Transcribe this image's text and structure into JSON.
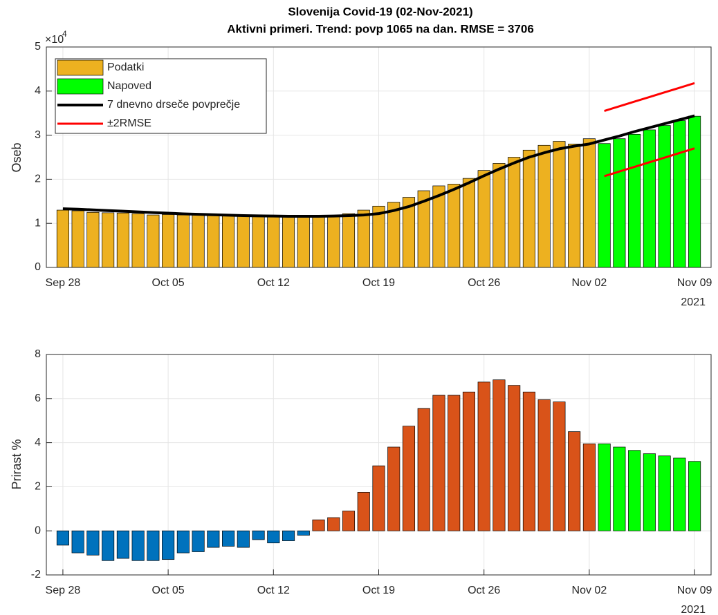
{
  "chart_data": [
    {
      "type": "bar",
      "title": [
        "Slovenija Covid-19 (02-Nov-2021)",
        "Aktivni primeri. Trend: povp 1065 na dan. RMSE = 3706"
      ],
      "ylabel": "Oseb",
      "y_exponent_label": "×10",
      "y_exponent": 4,
      "x": [
        "2021-09-28",
        "2021-09-29",
        "2021-09-30",
        "2021-10-01",
        "2021-10-02",
        "2021-10-03",
        "2021-10-04",
        "2021-10-05",
        "2021-10-06",
        "2021-10-07",
        "2021-10-08",
        "2021-10-09",
        "2021-10-10",
        "2021-10-11",
        "2021-10-12",
        "2021-10-13",
        "2021-10-14",
        "2021-10-15",
        "2021-10-16",
        "2021-10-17",
        "2021-10-18",
        "2021-10-19",
        "2021-10-20",
        "2021-10-21",
        "2021-10-22",
        "2021-10-23",
        "2021-10-24",
        "2021-10-25",
        "2021-10-26",
        "2021-10-27",
        "2021-10-28",
        "2021-10-29",
        "2021-10-30",
        "2021-10-31",
        "2021-11-01",
        "2021-11-02",
        "2021-11-03",
        "2021-11-04",
        "2021-11-05",
        "2021-11-06",
        "2021-11-07",
        "2021-11-08",
        "2021-11-09"
      ],
      "xticks": [
        {
          "value": "2021-09-28",
          "label": "Sep 28"
        },
        {
          "value": "2021-10-05",
          "label": "Oct 05"
        },
        {
          "value": "2021-10-12",
          "label": "Oct 12"
        },
        {
          "value": "2021-10-19",
          "label": "Oct 19"
        },
        {
          "value": "2021-10-26",
          "label": "Oct 26"
        },
        {
          "value": "2021-11-02",
          "label": "Nov 02"
        },
        {
          "value": "2021-11-09",
          "label": "Nov 09"
        }
      ],
      "x_year_label": "2021",
      "ylim": [
        0,
        50000
      ],
      "yticks": [
        0,
        {
          "value": 10000,
          "label": "1"
        },
        {
          "value": 20000,
          "label": "2"
        },
        {
          "value": 30000,
          "label": "3"
        },
        {
          "value": 40000,
          "label": "4"
        },
        {
          "value": 50000,
          "label": "5"
        }
      ],
      "grid": true,
      "legend": "upper left",
      "series": [
        {
          "name": "Podatki",
          "type": "bar",
          "color": "#edb120",
          "values": [
            13000,
            12850,
            12500,
            12400,
            12350,
            12200,
            11900,
            12000,
            11900,
            11900,
            11900,
            11750,
            11750,
            11600,
            11600,
            11600,
            11600,
            11700,
            11850,
            12200,
            13000,
            13900,
            14800,
            15900,
            17400,
            18500,
            18900,
            20200,
            22000,
            23600,
            25000,
            26600,
            27700,
            28600,
            28000,
            29200,
            null,
            null,
            null,
            null,
            null,
            null,
            null
          ]
        },
        {
          "name": "Napoved",
          "type": "bar",
          "color": "#00ff00",
          "values": [
            null,
            null,
            null,
            null,
            null,
            null,
            null,
            null,
            null,
            null,
            null,
            null,
            null,
            null,
            null,
            null,
            null,
            null,
            null,
            null,
            null,
            null,
            null,
            null,
            null,
            null,
            null,
            null,
            null,
            null,
            null,
            null,
            null,
            null,
            null,
            null,
            28100,
            29200,
            30200,
            31200,
            32200,
            33300,
            34300
          ]
        },
        {
          "name": "7 dnevno drseče povprečje",
          "type": "line",
          "color": "#000000",
          "values": [
            13300,
            13200,
            13050,
            12900,
            12750,
            12600,
            12450,
            12300,
            12150,
            12050,
            11950,
            11850,
            11750,
            11700,
            11650,
            11600,
            11600,
            11600,
            11650,
            11750,
            11900,
            12200,
            12900,
            13800,
            15000,
            16300,
            17700,
            19200,
            20800,
            22300,
            23700,
            25000,
            26000,
            26900,
            27500,
            28000,
            28900,
            29800,
            30800,
            31700,
            32600,
            33500,
            34400
          ]
        },
        {
          "name": "±2RMSE",
          "type": "line",
          "color": "#ff0000",
          "values": [
            null,
            null,
            null,
            null,
            null,
            null,
            null,
            null,
            null,
            null,
            null,
            null,
            null,
            null,
            null,
            null,
            null,
            null,
            null,
            null,
            null,
            null,
            null,
            null,
            null,
            null,
            null,
            null,
            null,
            null,
            null,
            null,
            null,
            null,
            null,
            null,
            35500,
            36550,
            37600,
            38650,
            39700,
            40750,
            41800
          ],
          "values_lower": [
            null,
            null,
            null,
            null,
            null,
            null,
            null,
            null,
            null,
            null,
            null,
            null,
            null,
            null,
            null,
            null,
            null,
            null,
            null,
            null,
            null,
            null,
            null,
            null,
            null,
            null,
            null,
            null,
            null,
            null,
            null,
            null,
            null,
            null,
            null,
            null,
            20700,
            21750,
            22800,
            23850,
            24900,
            25950,
            27000
          ]
        }
      ]
    },
    {
      "type": "bar",
      "ylabel": "Prirast %",
      "x": [
        "2021-09-28",
        "2021-09-29",
        "2021-09-30",
        "2021-10-01",
        "2021-10-02",
        "2021-10-03",
        "2021-10-04",
        "2021-10-05",
        "2021-10-06",
        "2021-10-07",
        "2021-10-08",
        "2021-10-09",
        "2021-10-10",
        "2021-10-11",
        "2021-10-12",
        "2021-10-13",
        "2021-10-14",
        "2021-10-15",
        "2021-10-16",
        "2021-10-17",
        "2021-10-18",
        "2021-10-19",
        "2021-10-20",
        "2021-10-21",
        "2021-10-22",
        "2021-10-23",
        "2021-10-24",
        "2021-10-25",
        "2021-10-26",
        "2021-10-27",
        "2021-10-28",
        "2021-10-29",
        "2021-10-30",
        "2021-10-31",
        "2021-11-01",
        "2021-11-02",
        "2021-11-03",
        "2021-11-04",
        "2021-11-05",
        "2021-11-06",
        "2021-11-07",
        "2021-11-08",
        "2021-11-09"
      ],
      "xticks": [
        {
          "value": "2021-09-28",
          "label": "Sep 28"
        },
        {
          "value": "2021-10-05",
          "label": "Oct 05"
        },
        {
          "value": "2021-10-12",
          "label": "Oct 12"
        },
        {
          "value": "2021-10-19",
          "label": "Oct 19"
        },
        {
          "value": "2021-10-26",
          "label": "Oct 26"
        },
        {
          "value": "2021-11-02",
          "label": "Nov 02"
        },
        {
          "value": "2021-11-09",
          "label": "Nov 09"
        }
      ],
      "x_year_label": "2021",
      "ylim": [
        -2,
        8
      ],
      "yticks": [
        -2,
        0,
        2,
        4,
        6,
        8
      ],
      "grid": true,
      "series": [
        {
          "type": "bar",
          "color": "#0072bd",
          "values": [
            -0.65,
            -1.0,
            -1.1,
            -1.35,
            -1.25,
            -1.35,
            -1.35,
            -1.3,
            -1.0,
            -0.95,
            -0.75,
            -0.7,
            -0.75,
            -0.4,
            -0.55,
            -0.45,
            -0.2,
            null,
            null,
            null,
            null,
            null,
            null,
            null,
            null,
            null,
            null,
            null,
            null,
            null,
            null,
            null,
            null,
            null,
            null,
            null,
            null,
            null,
            null,
            null,
            null,
            null,
            null
          ]
        },
        {
          "type": "bar",
          "color": "#d95319",
          "values": [
            null,
            null,
            null,
            null,
            null,
            null,
            null,
            null,
            null,
            null,
            null,
            null,
            null,
            null,
            null,
            null,
            null,
            0.5,
            0.6,
            0.9,
            1.75,
            2.95,
            3.8,
            4.75,
            5.55,
            6.15,
            6.15,
            6.3,
            6.75,
            6.85,
            6.6,
            6.3,
            5.95,
            5.85,
            4.5,
            3.95,
            null,
            null,
            null,
            null,
            null,
            null,
            null
          ]
        },
        {
          "type": "bar",
          "color": "#00ff00",
          "values": [
            null,
            null,
            null,
            null,
            null,
            null,
            null,
            null,
            null,
            null,
            null,
            null,
            null,
            null,
            null,
            null,
            null,
            null,
            null,
            null,
            null,
            null,
            null,
            null,
            null,
            null,
            null,
            null,
            null,
            null,
            null,
            null,
            null,
            null,
            null,
            null,
            3.95,
            3.8,
            3.65,
            3.5,
            3.4,
            3.3,
            3.15
          ]
        }
      ]
    }
  ]
}
